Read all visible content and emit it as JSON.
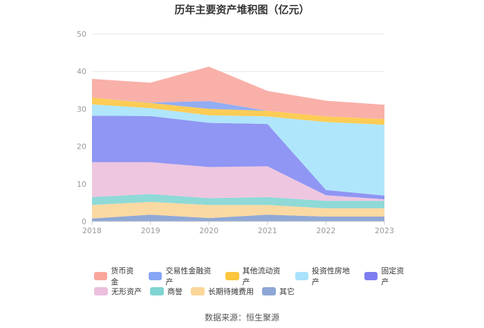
{
  "chart_data": {
    "type": "area",
    "stacked": true,
    "title": "历年主要资产堆积图（亿元）",
    "x": [
      "2018",
      "2019",
      "2020",
      "2021",
      "2022",
      "2023"
    ],
    "ylim": [
      0,
      50
    ],
    "yticks": [
      "0",
      "10",
      "20",
      "30",
      "40",
      "50"
    ],
    "grid": true,
    "legend_position": "bottom",
    "series": [
      {
        "name": "其它",
        "color": "#8fa8d6",
        "values": [
          0.8,
          1.8,
          0.9,
          1.8,
          1.3,
          1.3
        ]
      },
      {
        "name": "长期待摊费用",
        "color": "#fbd9a2",
        "values": [
          3.6,
          3.4,
          3.5,
          2.6,
          2.2,
          2.2
        ]
      },
      {
        "name": "商誉",
        "color": "#8fd9d7",
        "values": [
          2.1,
          2.1,
          1.8,
          2.1,
          2.0,
          2.0
        ]
      },
      {
        "name": "无形资产",
        "color": "#eec6e0",
        "values": [
          9.3,
          8.5,
          8.3,
          8.2,
          1.5,
          0.4
        ]
      },
      {
        "name": "固定资产",
        "color": "#8f96f3",
        "values": [
          12.4,
          12.3,
          11.8,
          11.3,
          1.4,
          1.0
        ]
      },
      {
        "name": "投资性房地产",
        "color": "#b0e6fb",
        "values": [
          3.0,
          2.1,
          2.0,
          2.0,
          18.1,
          18.9
        ]
      },
      {
        "name": "其他流动资产",
        "color": "#fdcc55",
        "values": [
          1.8,
          1.4,
          1.7,
          1.5,
          1.5,
          1.5
        ]
      },
      {
        "name": "交易性金融资产",
        "color": "#92adf3",
        "values": [
          0.0,
          0.1,
          2.1,
          0.0,
          0.0,
          0.0
        ]
      },
      {
        "name": "货币资金",
        "color": "#f9b0a9",
        "values": [
          5.0,
          5.3,
          9.2,
          5.3,
          4.2,
          3.8
        ]
      }
    ]
  },
  "legend": {
    "row1": [
      {
        "label": "货币资金",
        "color": "#f9a79c"
      },
      {
        "label": "交易性金融资产",
        "color": "#87a6f5"
      },
      {
        "label": "其他流动资产",
        "color": "#fbc53c"
      },
      {
        "label": "投资性房地产",
        "color": "#a8e3fb"
      },
      {
        "label": "固定资产",
        "color": "#7f7ef0"
      }
    ],
    "row2": [
      {
        "label": "无形资产",
        "color": "#ebbfdd"
      },
      {
        "label": "商誉",
        "color": "#7fd5d3"
      },
      {
        "label": "长期待摊费用",
        "color": "#fcd79a"
      },
      {
        "label": "其它",
        "color": "#8ea6d4"
      }
    ]
  },
  "source": "数据来源：恒生聚源"
}
